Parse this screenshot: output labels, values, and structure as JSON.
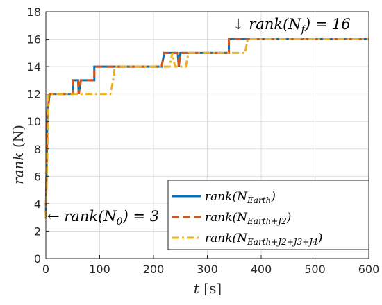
{
  "chart_data": {
    "type": "line",
    "xlabel": "t [s]",
    "ylabel": "rank (N)",
    "xlim": [
      0,
      600
    ],
    "ylim": [
      0,
      18
    ],
    "xticks": [
      0,
      100,
      200,
      300,
      400,
      500,
      600
    ],
    "yticks": [
      0,
      2,
      4,
      6,
      8,
      10,
      12,
      14,
      16,
      18
    ],
    "grid": true,
    "legend_position": "bottom-right",
    "annotations": [
      {
        "text": "↓ rank(N_f) = 16",
        "x": 340,
        "y": 16.8
      },
      {
        "text": "← rank(N_0) = 3",
        "x": 2,
        "y": 3
      }
    ],
    "series": [
      {
        "name": "rank(N_Earth)",
        "color": "#0072BD",
        "style": "solid",
        "x": [
          0,
          3,
          4,
          7,
          8,
          50,
          60,
          61,
          65,
          90,
          215,
          220,
          245,
          247,
          250,
          340,
          600
        ],
        "y": [
          3,
          11,
          11,
          12,
          12,
          13,
          13,
          12,
          13,
          14,
          14,
          15,
          15,
          14,
          15,
          16,
          16
        ]
      },
      {
        "name": "rank(N_Earth+J2)",
        "color": "#D95319",
        "style": "dashed",
        "x": [
          0,
          3,
          4,
          7,
          8,
          50,
          60,
          61,
          65,
          90,
          215,
          220,
          245,
          247,
          250,
          340,
          600
        ],
        "y": [
          3,
          11,
          11,
          12,
          12,
          13,
          13,
          12,
          13,
          14,
          14,
          15,
          15,
          14,
          15,
          16,
          16
        ]
      },
      {
        "name": "rank(N_Earth+J2+J3+J4)",
        "color": "#EDB120",
        "style": "dashdot",
        "x": [
          0,
          5,
          120,
          125,
          128,
          230,
          235,
          240,
          260,
          265,
          370,
          375,
          600
        ],
        "y": [
          3,
          12,
          12,
          13,
          14,
          14,
          15,
          14,
          14,
          15,
          15,
          16,
          16
        ]
      }
    ]
  },
  "legend": {
    "entries": [
      {
        "name": "rank(N",
        "sub": "Earth",
        "tail": ")"
      },
      {
        "name": "rank(N",
        "sub": "Earth+J2",
        "tail": ")"
      },
      {
        "name": "rank(N",
        "sub": "Earth+J2+J3+J4",
        "tail": ")"
      }
    ]
  },
  "labels": {
    "ylabel_main": "rank",
    "ylabel_tail": " (N)",
    "xlabel_main": "t",
    "xlabel_tail": " [s]",
    "annot_top": "↓ rank(N",
    "annot_top_sub": "f",
    "annot_top_tail": ") = 16",
    "annot_bottom": "← rank(N",
    "annot_bottom_sub": "0",
    "annot_bottom_tail": ") = 3"
  }
}
